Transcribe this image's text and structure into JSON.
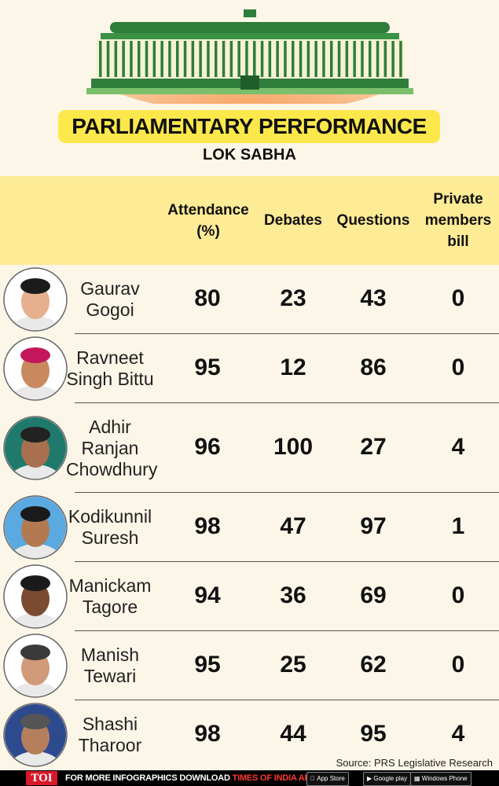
{
  "title": "PARLIAMENTARY PERFORMANCE",
  "subtitle": "LOK SABHA",
  "source": "Source: PRS Legislative Research",
  "footer": {
    "toi_logo": "TOI",
    "promo_prefix": "FOR MORE  INFOGRAPHICS DOWNLOAD ",
    "promo_app": "TIMES OF INDIA APP",
    "stores": [
      "App Store",
      "Google play",
      "Windows Phone"
    ]
  },
  "colors": {
    "background": "#fcf6e8",
    "title_banner": "#fde84c",
    "header_row": "#fdeb95",
    "building_orange": "#f4a260",
    "building_green": "#2f8a3c"
  },
  "icons": [
    "parliament-building-icon",
    "apple-icon",
    "google-play-icon",
    "windows-icon"
  ],
  "chart_data": {
    "type": "table",
    "columns": [
      "Attendance\n(%)",
      "Debates",
      "Questions",
      "Private\nmembers\nbill"
    ],
    "rows": [
      {
        "name": "Gaurav\nGogoi",
        "values": [
          80,
          23,
          43,
          0
        ]
      },
      {
        "name": "Ravneet\nSingh Bittu",
        "values": [
          95,
          12,
          86,
          0
        ]
      },
      {
        "name": "Adhir\nRanjan\nChowdhury",
        "values": [
          96,
          100,
          27,
          4
        ]
      },
      {
        "name": "Kodikunnil\nSuresh",
        "values": [
          98,
          47,
          97,
          1
        ]
      },
      {
        "name": "Manickam\nTagore",
        "values": [
          94,
          36,
          69,
          0
        ]
      },
      {
        "name": "Manish\nTewari",
        "values": [
          95,
          25,
          62,
          0
        ]
      },
      {
        "name": "Shashi\nTharoor",
        "values": [
          98,
          44,
          95,
          4
        ]
      }
    ]
  }
}
